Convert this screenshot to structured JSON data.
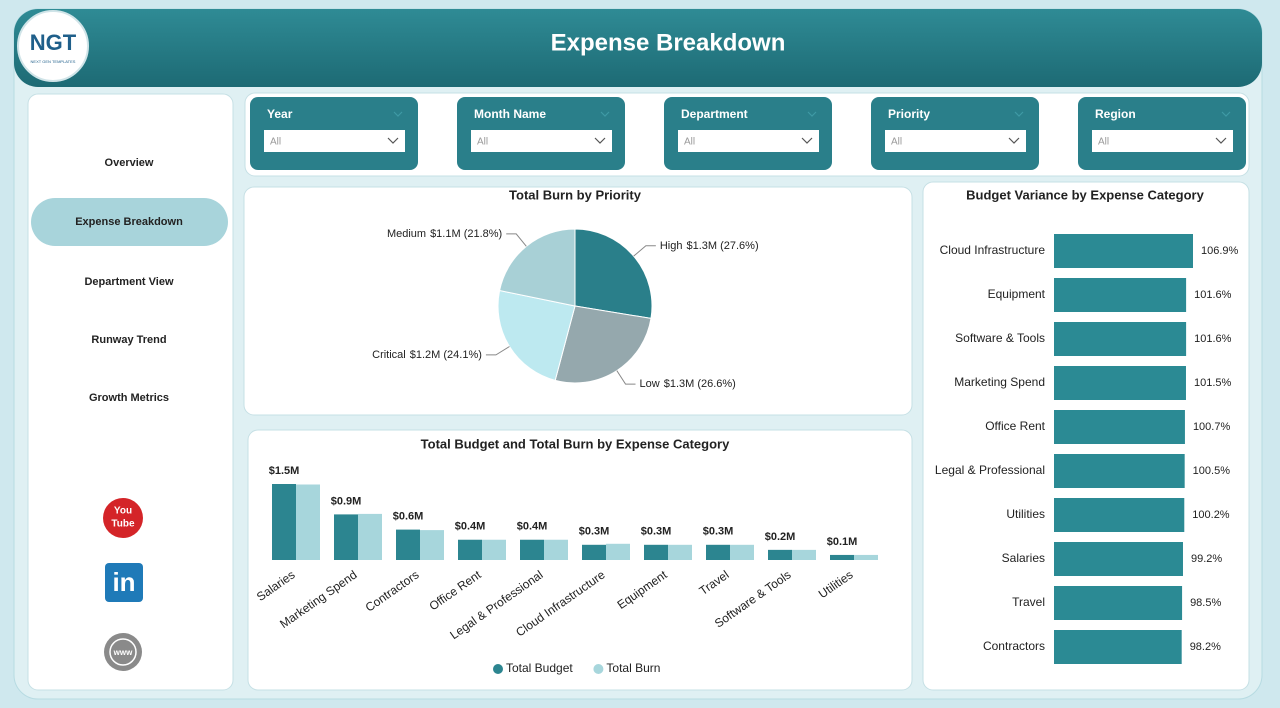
{
  "header": {
    "title": "Expense Breakdown",
    "logo": "NGT",
    "logo_tagline": "NEXT GEN TEMPLATES"
  },
  "nav": {
    "items": [
      "Overview",
      "Expense Breakdown",
      "Department View",
      "Runway Trend",
      "Growth Metrics"
    ],
    "selected": 1
  },
  "social_icons": {
    "youtube": [
      "You",
      "Tube"
    ],
    "linkedin": "in",
    "web": "www"
  },
  "filters": [
    {
      "label": "Year",
      "value": "All"
    },
    {
      "label": "Month Name",
      "value": "All"
    },
    {
      "label": "Department",
      "value": "All"
    },
    {
      "label": "Priority",
      "value": "All"
    },
    {
      "label": "Region",
      "value": "All"
    }
  ],
  "chart_data": [
    {
      "type": "pie",
      "title": "Total Burn by Priority",
      "categories": [
        "High",
        "Low",
        "Critical",
        "Medium"
      ],
      "values": [
        27.6,
        26.6,
        24.1,
        21.8
      ],
      "value_labels": [
        "$1.3M (27.6%)",
        "$1.3M (26.6%)",
        "$1.2M (24.1%)",
        "$1.1M (21.8%)"
      ],
      "colors": [
        "#2a7f8a",
        "#95a8ad",
        "#bde9f0",
        "#a8d0d6"
      ]
    },
    {
      "type": "bar",
      "title": "Total Budget and Total Burn by Expense Category",
      "categories": [
        "Salaries",
        "Marketing Spend",
        "Contractors",
        "Office Rent",
        "Legal & Professional",
        "Cloud Infrastructure",
        "Equipment",
        "Travel",
        "Software & Tools",
        "Utilities"
      ],
      "series": [
        {
          "name": "Total Budget",
          "color": "#2c8590",
          "values": [
            1.5,
            0.9,
            0.6,
            0.4,
            0.4,
            0.3,
            0.3,
            0.3,
            0.2,
            0.1
          ],
          "value_labels": [
            "$1.5M",
            "$0.9M",
            "$0.6M",
            "$0.4M",
            "$0.4M",
            "$0.3M",
            "$0.3M",
            "$0.3M",
            "$0.2M",
            "$0.1M"
          ]
        },
        {
          "name": "Total Burn",
          "color": "#a7d6dc",
          "values": [
            1.49,
            0.91,
            0.59,
            0.4,
            0.4,
            0.32,
            0.3,
            0.3,
            0.2,
            0.1
          ]
        }
      ],
      "legend": "bottom"
    },
    {
      "type": "hbar",
      "title": "Budget Variance by Expense Category",
      "categories": [
        "Cloud Infrastructure",
        "Equipment",
        "Software & Tools",
        "Marketing Spend",
        "Office Rent",
        "Legal & Professional",
        "Utilities",
        "Salaries",
        "Travel",
        "Contractors"
      ],
      "values": [
        106.9,
        101.6,
        101.6,
        101.5,
        100.7,
        100.5,
        100.2,
        99.2,
        98.5,
        98.2
      ],
      "value_labels": [
        "106.9%",
        "101.6%",
        "101.6%",
        "101.5%",
        "100.7%",
        "100.5%",
        "100.2%",
        "99.2%",
        "98.5%",
        "98.2%"
      ],
      "color": "#2b8a94"
    }
  ]
}
